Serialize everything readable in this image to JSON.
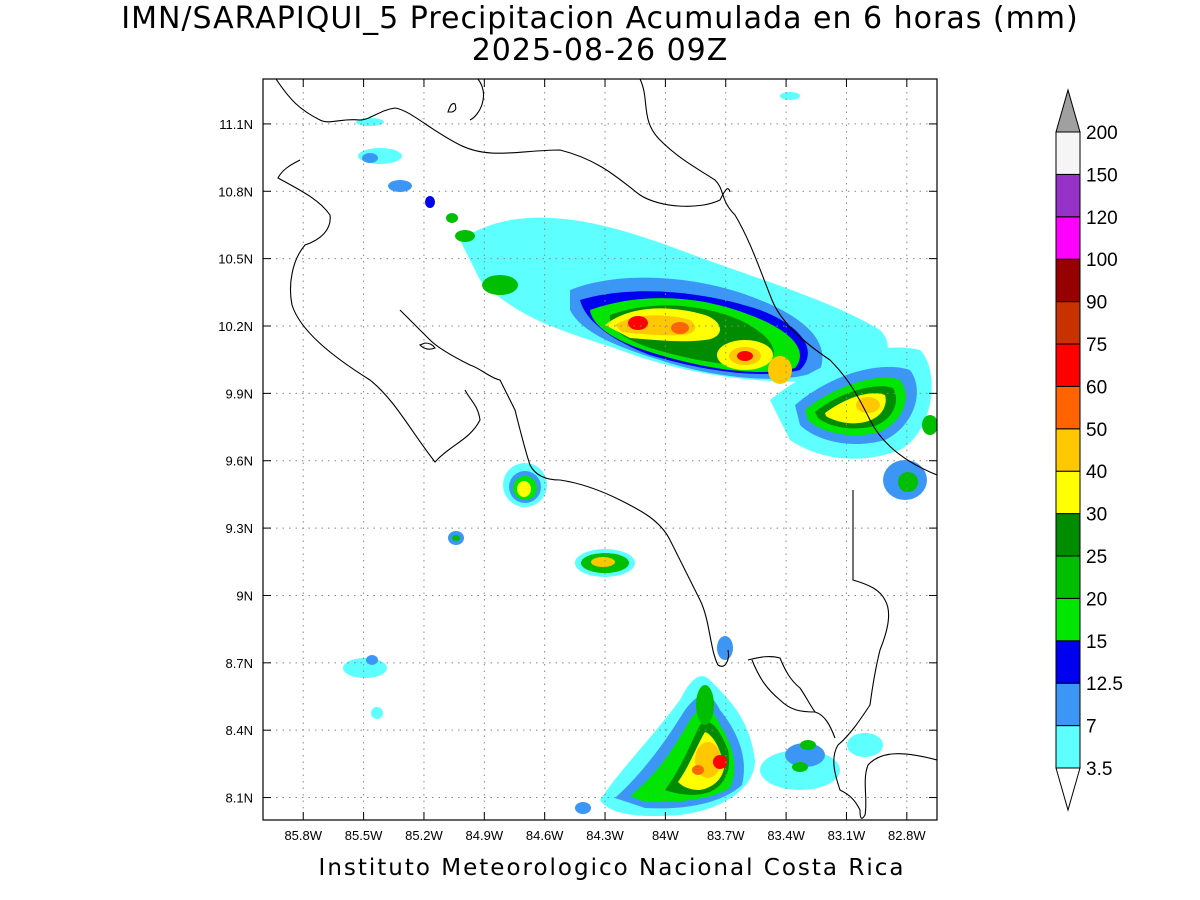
{
  "title_line1": "IMN/SARAPIQUI_5 Precipitacion Acumulada en 6 horas (mm)",
  "title_line2": "2025-08-26 09Z",
  "footer": "Instituto Meteorologico Nacional Costa Rica",
  "map": {
    "lon_range": [
      -86.0,
      -82.65
    ],
    "lat_range": [
      8.0,
      11.3
    ],
    "lon_ticks": [
      "85.8W",
      "85.5W",
      "85.2W",
      "84.9W",
      "84.6W",
      "84.3W",
      "84W",
      "83.7W",
      "83.4W",
      "83.1W",
      "82.8W"
    ],
    "lon_tick_values": [
      -85.8,
      -85.5,
      -85.2,
      -84.9,
      -84.6,
      -84.3,
      -84.0,
      -83.7,
      -83.4,
      -83.1,
      -82.8
    ],
    "lat_ticks": [
      "8.1N",
      "8.4N",
      "8.7N",
      "9N",
      "9.3N",
      "9.6N",
      "9.9N",
      "10.2N",
      "10.5N",
      "10.8N",
      "11.1N"
    ],
    "lat_tick_values": [
      8.1,
      8.4,
      8.7,
      9.0,
      9.3,
      9.6,
      9.9,
      10.2,
      10.5,
      10.8,
      11.1
    ],
    "grid": "dotted"
  },
  "colorbar": {
    "labels": [
      "3.5",
      "7",
      "12.5",
      "15",
      "20",
      "25",
      "30",
      "40",
      "50",
      "60",
      "75",
      "90",
      "100",
      "120",
      "150",
      "200"
    ],
    "colors": [
      "#ffffff",
      "#5effff",
      "#3c96f5",
      "#0000f0",
      "#00e600",
      "#00be00",
      "#008c00",
      "#ffff00",
      "#ffc800",
      "#ff6400",
      "#ff0000",
      "#c83200",
      "#960000",
      "#ff00ff",
      "#9632c8",
      "#f5f5f5",
      "#a0a0a0"
    ]
  },
  "precip_areas": [
    {
      "name": "northern-band",
      "peak_level": "60"
    },
    {
      "name": "eastern-band",
      "peak_level": "50"
    },
    {
      "name": "central-cell",
      "peak_level": "40"
    },
    {
      "name": "southern-cell",
      "peak_level": "75"
    }
  ]
}
